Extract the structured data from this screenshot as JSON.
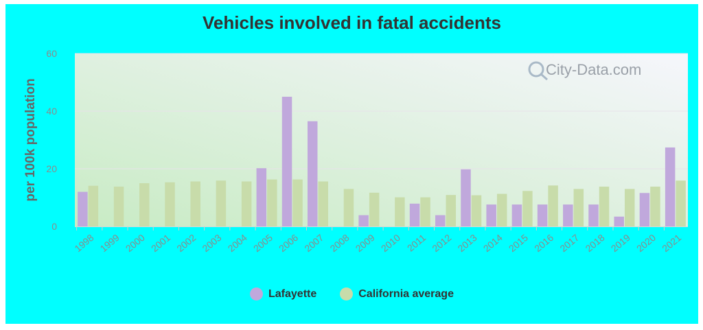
{
  "chart_data": {
    "type": "bar",
    "title": "Vehicles involved in fatal accidents",
    "ylabel": "per 100k population",
    "xlabel": "",
    "ylim": [
      0,
      60
    ],
    "yticks": [
      0,
      20,
      40,
      60
    ],
    "categories": [
      "1998",
      "1999",
      "2000",
      "2001",
      "2002",
      "2003",
      "2004",
      "2005",
      "2006",
      "2007",
      "2008",
      "2009",
      "2010",
      "2011",
      "2012",
      "2013",
      "2014",
      "2015",
      "2016",
      "2017",
      "2018",
      "2019",
      "2020",
      "2021"
    ],
    "series": [
      {
        "name": "Lafayette",
        "color": "#c0a8dc",
        "values": [
          12,
          null,
          null,
          null,
          null,
          null,
          null,
          20.2,
          45,
          36.5,
          null,
          3.9,
          null,
          7.9,
          3.9,
          19.8,
          7.6,
          7.6,
          7.6,
          7.6,
          7.6,
          3.4,
          11.6,
          27.4
        ]
      },
      {
        "name": "California average",
        "color": "#c8dcaa",
        "values": [
          14.1,
          13.8,
          15.0,
          15.3,
          15.6,
          15.9,
          15.6,
          16.3,
          16.3,
          15.6,
          13.0,
          11.7,
          10.1,
          10.1,
          10.9,
          10.8,
          11.3,
          12.3,
          14.2,
          13.0,
          13.8,
          13.0,
          13.8,
          15.9
        ]
      }
    ],
    "grid": true,
    "legend_position": "bottom"
  },
  "watermark": "City-Data.com",
  "colors": {
    "frame_background": "#00ffff",
    "plot_gradient_top": "#f6f6fc",
    "plot_gradient_bottom": "#c8ebc4"
  }
}
